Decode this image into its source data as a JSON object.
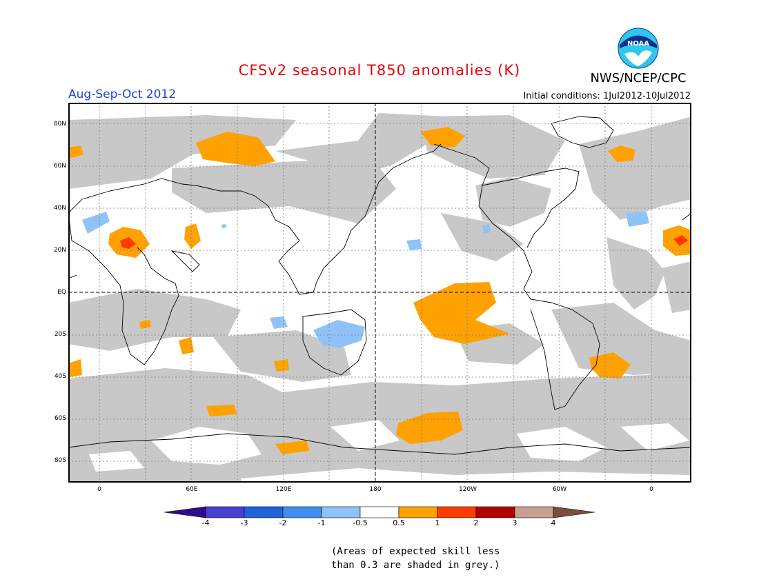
{
  "header": {
    "title": "CFSv2 seasonal T850 anomalies (K)",
    "agency": "NWS/NCEP/CPC",
    "period": "Aug-Sep-Oct 2012",
    "initial_conditions": "Initial conditions: 1Jul2012-10Jul2012"
  },
  "logo": {
    "text": "NOAA"
  },
  "map": {
    "lat_labels": [
      "80N",
      "60N",
      "40N",
      "20N",
      "EQ",
      "20S",
      "40S",
      "60S",
      "80S"
    ],
    "lon_labels": [
      "0",
      "60E",
      "120E",
      "180",
      "120W",
      "60W",
      "0"
    ]
  },
  "colorbar": {
    "labels": [
      "-4",
      "-3",
      "-2",
      "-1",
      "-0.5",
      "0.5",
      "1",
      "2",
      "3",
      "4"
    ],
    "colors": [
      "#2c0d8c",
      "#4a3fd0",
      "#1e64d8",
      "#3d8ef0",
      "#8ec2f8",
      "#ffffff",
      "#ffa100",
      "#ff3c00",
      "#b40000",
      "#c8a090",
      "#7a4e3a"
    ]
  },
  "note": {
    "line1": "(Areas of expected skill less",
    "line2": "than 0.3 are shaded in grey.)"
  },
  "colors": {
    "title": "#e8000b",
    "period": "#1f3fe0",
    "skill_mask": "#c8c8c8",
    "warm": "#ffa100",
    "hot": "#ff3c00",
    "cool": "#8ec2f8"
  }
}
